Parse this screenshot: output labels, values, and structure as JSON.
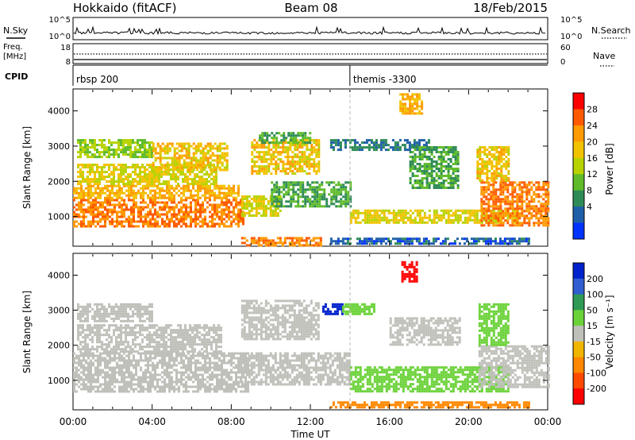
{
  "header": {
    "station": "Hokkaido (fitACF)",
    "beam": "Beam 08",
    "date": "18/Feb/2015"
  },
  "strips": {
    "nsky_label": "N.Sky",
    "nsky_ticks": [
      "10^5",
      "10^0"
    ],
    "nsearch_label": "N.Search",
    "nsearch_ticks": [
      "10^5",
      "10^0"
    ],
    "freq_label_1": "Freq.",
    "freq_label_2": "[MHz]",
    "freq_ticks": [
      "18",
      "8"
    ],
    "nave_label": "Nave",
    "nave_ticks": [
      "60",
      "0"
    ],
    "cpid_label": "CPID",
    "cpid_segments": [
      {
        "label": "rbsp 200",
        "start_hour": 0
      },
      {
        "label": "themis -3300",
        "start_hour": 14
      }
    ]
  },
  "chart_data": [
    {
      "type": "heatmap",
      "name": "power",
      "ylabel": "Slant Range [km]",
      "xlabel": "",
      "ylim": [
        180,
        4600
      ],
      "yticks": [
        1000,
        2000,
        3000,
        4000
      ],
      "xlim": [
        0,
        24
      ],
      "colorbar_label": "Power [dB]",
      "colorbar_ticks": [
        "28",
        "24",
        "20",
        "16",
        "12",
        "8",
        "4"
      ],
      "colorbar_colors": [
        "#ff0000",
        "#ff5a00",
        "#ff9a00",
        "#f2c200",
        "#b8d200",
        "#5fbb2a",
        "#2e8b57",
        "#1f5fa8",
        "#0033ff"
      ],
      "regions": [
        {
          "x0": 0.0,
          "x1": 8.6,
          "y0": 750,
          "y1": 1500,
          "value": 26
        },
        {
          "x0": 0.0,
          "x1": 8.4,
          "y0": 1500,
          "y1": 1900,
          "value": 22
        },
        {
          "x0": 0.2,
          "x1": 7.2,
          "y0": 1900,
          "y1": 2500,
          "value": 18
        },
        {
          "x0": 0.2,
          "x1": 4.0,
          "y0": 2700,
          "y1": 3200,
          "value": 14
        },
        {
          "x0": 4.0,
          "x1": 7.8,
          "y0": 2300,
          "y1": 3100,
          "value": 20
        },
        {
          "x0": 8.5,
          "x1": 10.5,
          "y0": 1000,
          "y1": 1600,
          "value": 18
        },
        {
          "x0": 9.0,
          "x1": 12.4,
          "y0": 2200,
          "y1": 3200,
          "value": 20
        },
        {
          "x0": 9.4,
          "x1": 12.0,
          "y0": 3100,
          "y1": 3400,
          "value": 10
        },
        {
          "x0": 10.0,
          "x1": 14.0,
          "y0": 1300,
          "y1": 2000,
          "value": 10
        },
        {
          "x0": 13.0,
          "x1": 18.0,
          "y0": 2900,
          "y1": 3200,
          "value": 6
        },
        {
          "x0": 14.0,
          "x1": 22.5,
          "y0": 800,
          "y1": 1200,
          "value": 18
        },
        {
          "x0": 16.5,
          "x1": 17.6,
          "y0": 3900,
          "y1": 4500,
          "value": 22
        },
        {
          "x0": 17.0,
          "x1": 19.5,
          "y0": 1800,
          "y1": 3000,
          "value": 10
        },
        {
          "x0": 20.6,
          "x1": 24.0,
          "y0": 750,
          "y1": 2000,
          "value": 26
        },
        {
          "x0": 20.4,
          "x1": 22.0,
          "y0": 2000,
          "y1": 3000,
          "value": 20
        },
        {
          "x0": 8.5,
          "x1": 12.5,
          "y0": 200,
          "y1": 420,
          "value": 26
        },
        {
          "x0": 13.0,
          "x1": 23.0,
          "y0": 200,
          "y1": 400,
          "value": 4
        }
      ]
    },
    {
      "type": "heatmap",
      "name": "velocity",
      "ylabel": "Slant Range [km]",
      "xlabel": "Time UT",
      "ylim": [
        180,
        4600
      ],
      "yticks": [
        1000,
        2000,
        3000,
        4000
      ],
      "xlim": [
        0,
        24
      ],
      "xticks": [
        "00:00",
        "04:00",
        "08:00",
        "12:00",
        "16:00",
        "20:00",
        "00:00"
      ],
      "colorbar_label": "Velocity [m s⁻¹]",
      "colorbar_ticks": [
        "200",
        "100",
        "50",
        "15",
        "-15",
        "-50",
        "-100",
        "-200"
      ],
      "colorbar_colors": [
        "#0022cc",
        "#2f5fd0",
        "#2e9a55",
        "#6cd23a",
        "#c0c0bb",
        "#f0b500",
        "#ff8800",
        "#ff4a00",
        "#ff0000"
      ],
      "regions": [
        {
          "x0": 0.0,
          "x1": 8.8,
          "y0": 700,
          "y1": 1800,
          "value": 0
        },
        {
          "x0": 0.2,
          "x1": 7.5,
          "y0": 1800,
          "y1": 2600,
          "value": 0
        },
        {
          "x0": 0.2,
          "x1": 4.0,
          "y0": 2700,
          "y1": 3200,
          "value": 0
        },
        {
          "x0": 8.5,
          "x1": 12.4,
          "y0": 2200,
          "y1": 3300,
          "value": 0
        },
        {
          "x0": 8.5,
          "x1": 14.0,
          "y0": 900,
          "y1": 1800,
          "value": 0
        },
        {
          "x0": 12.6,
          "x1": 13.6,
          "y0": 2900,
          "y1": 3200,
          "value": 220
        },
        {
          "x0": 13.6,
          "x1": 15.2,
          "y0": 2900,
          "y1": 3200,
          "value": 30
        },
        {
          "x0": 16.6,
          "x1": 17.4,
          "y0": 3800,
          "y1": 4400,
          "value": -220
        },
        {
          "x0": 14.0,
          "x1": 22.0,
          "y0": 700,
          "y1": 1400,
          "value": 30
        },
        {
          "x0": 16.0,
          "x1": 19.6,
          "y0": 2000,
          "y1": 2800,
          "value": 0
        },
        {
          "x0": 20.5,
          "x1": 24.0,
          "y0": 800,
          "y1": 2000,
          "value": 0
        },
        {
          "x0": 20.5,
          "x1": 22.0,
          "y0": 2000,
          "y1": 3200,
          "value": 30
        },
        {
          "x0": 13.0,
          "x1": 23.0,
          "y0": 200,
          "y1": 400,
          "value": -60
        }
      ]
    }
  ]
}
